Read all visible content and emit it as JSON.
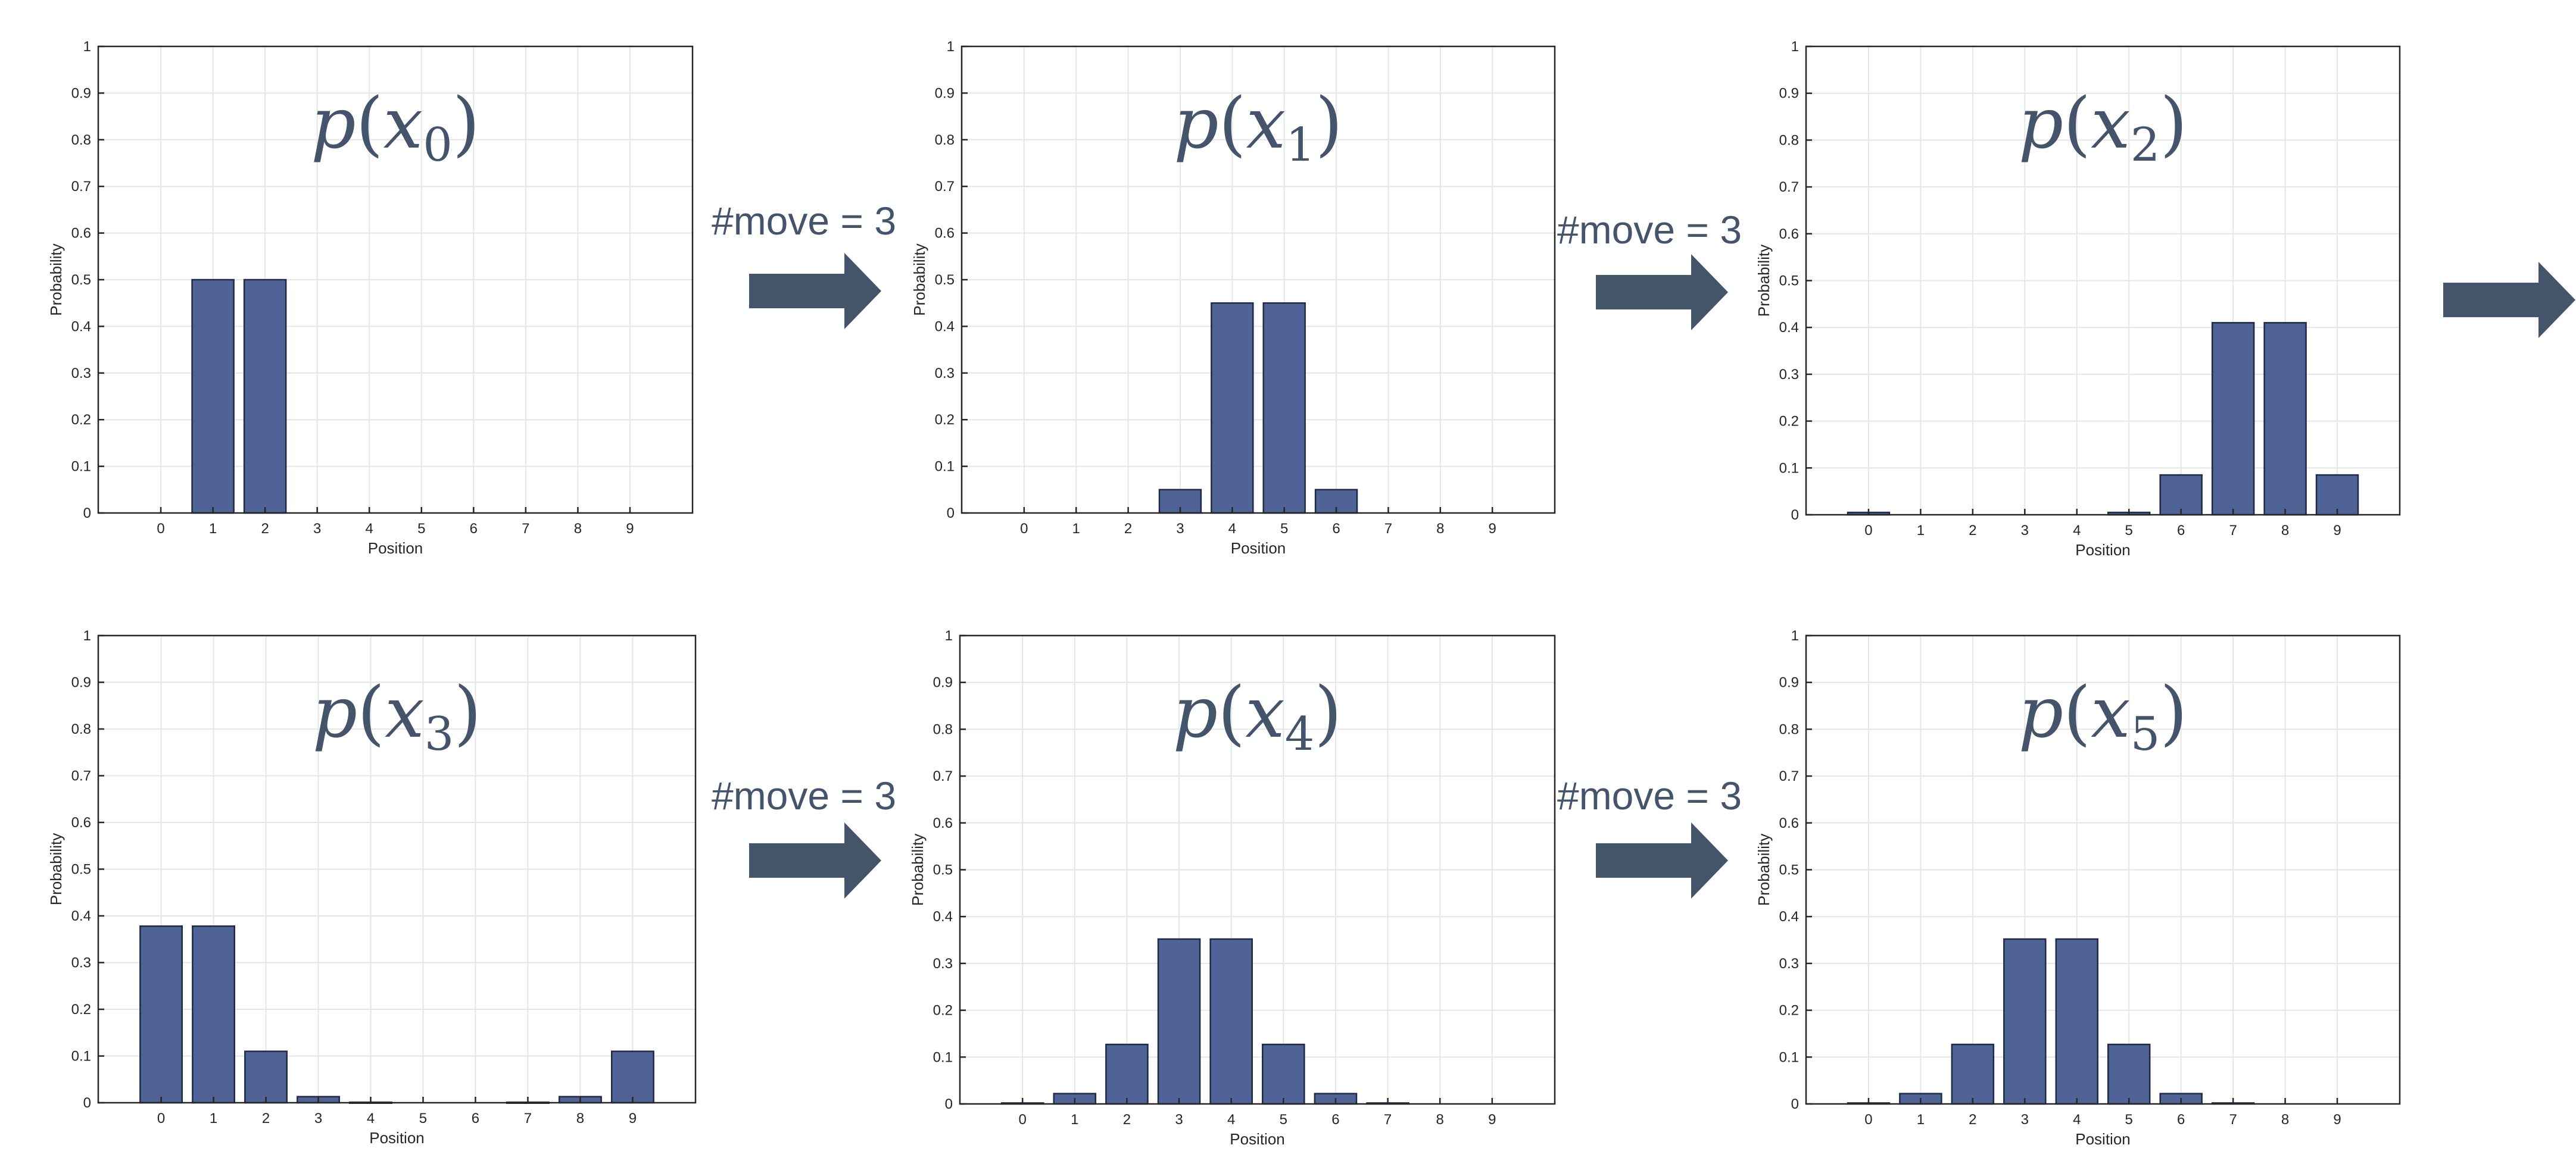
{
  "colors": {
    "bar_fill": "#4f6396",
    "bar_edge": "#1f2a44",
    "axis": "#262626",
    "grid": "#e6e6e6",
    "arrow": "#44546a",
    "title": "#44546a"
  },
  "arrow_labels": [
    "#move = 3",
    "#move = 3",
    "#move = 3",
    "#move = 3"
  ],
  "chart_data": [
    {
      "type": "bar",
      "title_var": "p",
      "title_sub": "0",
      "xlabel": "Position",
      "ylabel": "Probability",
      "categories": [
        "0",
        "1",
        "2",
        "3",
        "4",
        "5",
        "6",
        "7",
        "8",
        "9"
      ],
      "values": [
        0,
        0.5,
        0.5,
        0,
        0,
        0,
        0,
        0,
        0,
        0
      ],
      "ylim": [
        0,
        1
      ],
      "yticks": [
        "0",
        "0.1",
        "0.2",
        "0.3",
        "0.4",
        "0.5",
        "0.6",
        "0.7",
        "0.8",
        "0.9",
        "1"
      ],
      "grid": true
    },
    {
      "type": "bar",
      "title_var": "p",
      "title_sub": "1",
      "xlabel": "Position",
      "ylabel": "Probability",
      "categories": [
        "0",
        "1",
        "2",
        "3",
        "4",
        "5",
        "6",
        "7",
        "8",
        "9"
      ],
      "values": [
        0,
        0,
        0,
        0.05,
        0.45,
        0.45,
        0.05,
        0,
        0,
        0
      ],
      "ylim": [
        0,
        1
      ],
      "yticks": [
        "0",
        "0.1",
        "0.2",
        "0.3",
        "0.4",
        "0.5",
        "0.6",
        "0.7",
        "0.8",
        "0.9",
        "1"
      ],
      "grid": true
    },
    {
      "type": "bar",
      "title_var": "p",
      "title_sub": "2",
      "xlabel": "Position",
      "ylabel": "Probability",
      "categories": [
        "0",
        "1",
        "2",
        "3",
        "4",
        "5",
        "6",
        "7",
        "8",
        "9"
      ],
      "values": [
        0.005,
        0,
        0,
        0,
        0,
        0.005,
        0.085,
        0.41,
        0.41,
        0.085
      ],
      "ylim": [
        0,
        1
      ],
      "yticks": [
        "0",
        "0.1",
        "0.2",
        "0.3",
        "0.4",
        "0.5",
        "0.6",
        "0.7",
        "0.8",
        "0.9",
        "1"
      ],
      "grid": true
    },
    {
      "type": "bar",
      "title_var": "p",
      "title_sub": "3",
      "xlabel": "Position",
      "ylabel": "Probability",
      "categories": [
        "0",
        "1",
        "2",
        "3",
        "4",
        "5",
        "6",
        "7",
        "8",
        "9"
      ],
      "values": [
        0.378,
        0.378,
        0.11,
        0.013,
        0.001,
        0,
        0,
        0.001,
        0.013,
        0.11
      ],
      "ylim": [
        0,
        1
      ],
      "yticks": [
        "0",
        "0.1",
        "0.2",
        "0.3",
        "0.4",
        "0.5",
        "0.6",
        "0.7",
        "0.8",
        "0.9",
        "1"
      ],
      "grid": true
    },
    {
      "type": "bar",
      "title_var": "p",
      "title_sub": "4",
      "xlabel": "Position",
      "ylabel": "Probability",
      "categories": [
        "0",
        "1",
        "2",
        "3",
        "4",
        "5",
        "6",
        "7",
        "8",
        "9"
      ],
      "values": [
        0.002,
        0.022,
        0.127,
        0.352,
        0.352,
        0.127,
        0.022,
        0.002,
        0,
        0
      ],
      "ylim": [
        0,
        1
      ],
      "yticks": [
        "0",
        "0.1",
        "0.2",
        "0.3",
        "0.4",
        "0.5",
        "0.6",
        "0.7",
        "0.8",
        "0.9",
        "1"
      ],
      "grid": true
    },
    {
      "type": "bar",
      "title_var": "p",
      "title_sub": "5",
      "xlabel": "Position",
      "ylabel": "Probability",
      "categories": [
        "0",
        "1",
        "2",
        "3",
        "4",
        "5",
        "6",
        "7",
        "8",
        "9"
      ],
      "values": [
        0.002,
        0.022,
        0.127,
        0.352,
        0.352,
        0.127,
        0.022,
        0.002,
        0,
        0
      ],
      "ylim": [
        0,
        1
      ],
      "yticks": [
        "0",
        "0.1",
        "0.2",
        "0.3",
        "0.4",
        "0.5",
        "0.6",
        "0.7",
        "0.8",
        "0.9",
        "1"
      ],
      "grid": true
    }
  ]
}
